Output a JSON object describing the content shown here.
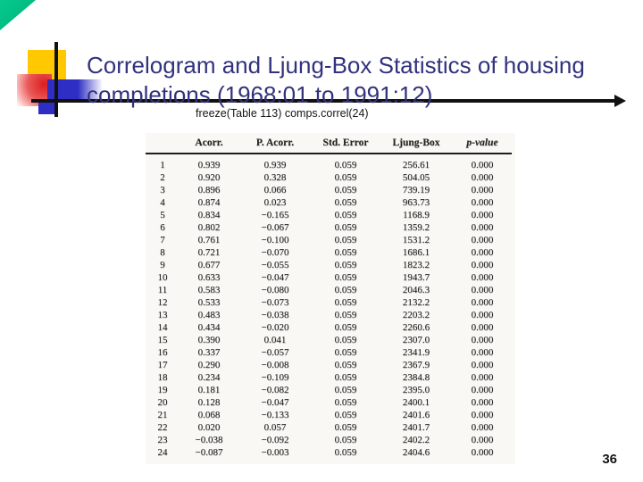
{
  "slide": {
    "title": "Correlogram and Ljung-Box Statistics of housing completions (1968:01 to 1991:12)",
    "subtitle": "freeze(Table 113) comps.correl(24)",
    "page_number": "36"
  },
  "colors": {
    "title_text": "#32327d",
    "accent_green": "#00b97e",
    "accent_yellow": "#ffc800",
    "accent_blue": "#2e2ec4",
    "accent_red": "#dd1d1d",
    "line_black": "#111111"
  },
  "table": {
    "headers": [
      "",
      "Acorr.",
      "P. Acorr.",
      "Std. Error",
      "Ljung-Box",
      "p-value"
    ],
    "rows": [
      [
        "1",
        "0.939",
        "0.939",
        "0.059",
        "256.61",
        "0.000"
      ],
      [
        "2",
        "0.920",
        "0.328",
        "0.059",
        "504.05",
        "0.000"
      ],
      [
        "3",
        "0.896",
        "0.066",
        "0.059",
        "739.19",
        "0.000"
      ],
      [
        "4",
        "0.874",
        "0.023",
        "0.059",
        "963.73",
        "0.000"
      ],
      [
        "5",
        "0.834",
        "−0.165",
        "0.059",
        "1168.9",
        "0.000"
      ],
      [
        "6",
        "0.802",
        "−0.067",
        "0.059",
        "1359.2",
        "0.000"
      ],
      [
        "7",
        "0.761",
        "−0.100",
        "0.059",
        "1531.2",
        "0.000"
      ],
      [
        "8",
        "0.721",
        "−0.070",
        "0.059",
        "1686.1",
        "0.000"
      ],
      [
        "9",
        "0.677",
        "−0.055",
        "0.059",
        "1823.2",
        "0.000"
      ],
      [
        "10",
        "0.633",
        "−0.047",
        "0.059",
        "1943.7",
        "0.000"
      ],
      [
        "11",
        "0.583",
        "−0.080",
        "0.059",
        "2046.3",
        "0.000"
      ],
      [
        "12",
        "0.533",
        "−0.073",
        "0.059",
        "2132.2",
        "0.000"
      ],
      [
        "13",
        "0.483",
        "−0.038",
        "0.059",
        "2203.2",
        "0.000"
      ],
      [
        "14",
        "0.434",
        "−0.020",
        "0.059",
        "2260.6",
        "0.000"
      ],
      [
        "15",
        "0.390",
        "0.041",
        "0.059",
        "2307.0",
        "0.000"
      ],
      [
        "16",
        "0.337",
        "−0.057",
        "0.059",
        "2341.9",
        "0.000"
      ],
      [
        "17",
        "0.290",
        "−0.008",
        "0.059",
        "2367.9",
        "0.000"
      ],
      [
        "18",
        "0.234",
        "−0.109",
        "0.059",
        "2384.8",
        "0.000"
      ],
      [
        "19",
        "0.181",
        "−0.082",
        "0.059",
        "2395.0",
        "0.000"
      ],
      [
        "20",
        "0.128",
        "−0.047",
        "0.059",
        "2400.1",
        "0.000"
      ],
      [
        "21",
        "0.068",
        "−0.133",
        "0.059",
        "2401.6",
        "0.000"
      ],
      [
        "22",
        "0.020",
        "0.057",
        "0.059",
        "2401.7",
        "0.000"
      ],
      [
        "23",
        "−0.038",
        "−0.092",
        "0.059",
        "2402.2",
        "0.000"
      ],
      [
        "24",
        "−0.087",
        "−0.003",
        "0.059",
        "2404.6",
        "0.000"
      ]
    ]
  }
}
